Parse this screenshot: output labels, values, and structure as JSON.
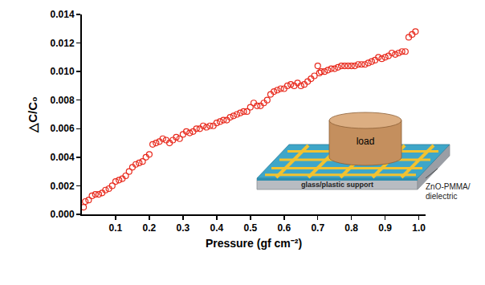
{
  "chart_data": {
    "type": "scatter",
    "x_label": "Pressure (gf cm⁻²)",
    "y_label": "△C/C₀",
    "color": "#e8291c",
    "marker": "open circle",
    "grid": false,
    "annotations": [
      "load",
      "glass/plastic support",
      "ZnO-PMMA/ dielectric"
    ],
    "xlim": [
      0,
      1.02
    ],
    "xticks": [
      0.1,
      0.2,
      0.3,
      0.4,
      0.5,
      0.6,
      0.7,
      0.8,
      0.9,
      {
        "value": 1,
        "label": "1.0"
      }
    ],
    "ylim": [
      0,
      0.014
    ],
    "yticks": [
      {
        "value": 0,
        "label": "0.000"
      },
      {
        "value": 0.002,
        "label": "0.002"
      },
      {
        "value": 0.004,
        "label": "0.004"
      },
      {
        "value": 0.006,
        "label": "0.006"
      },
      {
        "value": 0.008,
        "label": "0.008"
      },
      {
        "value": 0.01,
        "label": "0.010"
      },
      {
        "value": 0.012,
        "label": "0.012"
      },
      {
        "value": 0.014,
        "label": "0.014"
      }
    ],
    "x": [
      0.005,
      0.01,
      0.02,
      0.03,
      0.04,
      0.05,
      0.06,
      0.07,
      0.08,
      0.09,
      0.1,
      0.11,
      0.12,
      0.13,
      0.14,
      0.15,
      0.16,
      0.17,
      0.18,
      0.19,
      0.2,
      0.21,
      0.22,
      0.23,
      0.24,
      0.25,
      0.26,
      0.27,
      0.28,
      0.29,
      0.3,
      0.31,
      0.32,
      0.33,
      0.34,
      0.35,
      0.36,
      0.37,
      0.38,
      0.39,
      0.4,
      0.41,
      0.42,
      0.43,
      0.44,
      0.45,
      0.46,
      0.47,
      0.48,
      0.49,
      0.5,
      0.51,
      0.52,
      0.53,
      0.54,
      0.55,
      0.56,
      0.57,
      0.58,
      0.59,
      0.6,
      0.61,
      0.62,
      0.63,
      0.64,
      0.65,
      0.66,
      0.67,
      0.68,
      0.69,
      0.7,
      0.705,
      0.71,
      0.72,
      0.73,
      0.74,
      0.75,
      0.76,
      0.77,
      0.78,
      0.79,
      0.8,
      0.81,
      0.82,
      0.83,
      0.84,
      0.85,
      0.86,
      0.87,
      0.88,
      0.89,
      0.9,
      0.91,
      0.92,
      0.93,
      0.94,
      0.95,
      0.96,
      0.97,
      0.98,
      0.99
    ],
    "values": [
      0.0005,
      0.0009,
      0.001,
      0.0013,
      0.0014,
      0.0014,
      0.0015,
      0.0017,
      0.0018,
      0.002,
      0.0023,
      0.0024,
      0.0025,
      0.0027,
      0.003,
      0.0033,
      0.0035,
      0.0036,
      0.0037,
      0.004,
      0.0042,
      0.0049,
      0.005,
      0.0051,
      0.0053,
      0.0052,
      0.005,
      0.0052,
      0.0054,
      0.0053,
      0.0056,
      0.0058,
      0.0057,
      0.0058,
      0.006,
      0.006,
      0.0062,
      0.0061,
      0.0062,
      0.0062,
      0.0064,
      0.0065,
      0.0066,
      0.0066,
      0.0068,
      0.0069,
      0.007,
      0.0071,
      0.0072,
      0.0072,
      0.0075,
      0.0078,
      0.0076,
      0.0076,
      0.0078,
      0.008,
      0.0084,
      0.0086,
      0.0087,
      0.0088,
      0.0088,
      0.009,
      0.0091,
      0.009,
      0.0092,
      0.009,
      0.0091,
      0.0093,
      0.0095,
      0.0097,
      0.0104,
      0.0099,
      0.01,
      0.01,
      0.0101,
      0.0102,
      0.0102,
      0.0103,
      0.0104,
      0.0104,
      0.0104,
      0.0104,
      0.0104,
      0.0105,
      0.0105,
      0.0105,
      0.0106,
      0.0107,
      0.0108,
      0.011,
      0.0109,
      0.011,
      0.0111,
      0.0113,
      0.0112,
      0.0113,
      0.0114,
      0.0114,
      0.0124,
      0.0126,
      0.0128
    ]
  }
}
